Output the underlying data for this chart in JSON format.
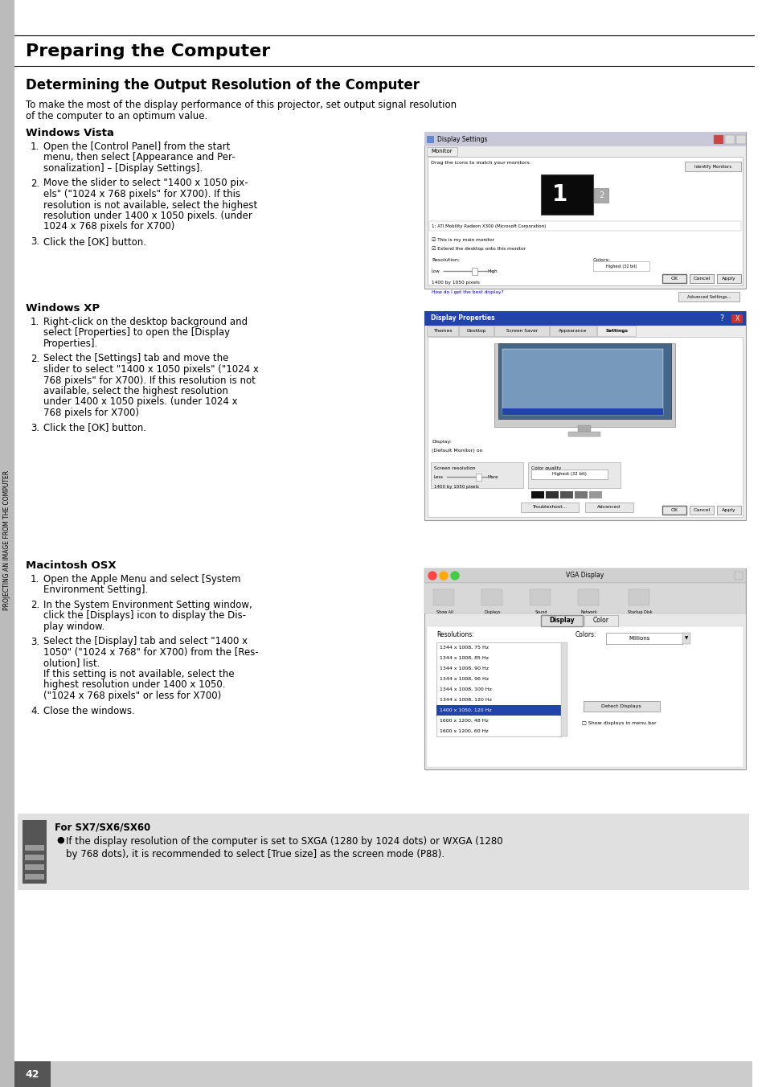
{
  "page_bg": "#ffffff",
  "sidebar_color": "#aaaaaa",
  "sidebar_text": "PROJECTING AN IMAGE FROM THE COMPUTER",
  "section_title": "Preparing the Computer",
  "subsection_title": "Determining the Output Resolution of the Computer",
  "intro_text1": "To make the most of the display performance of this projector, set output signal resolution",
  "intro_text2": "of the computer to an optimum value.",
  "windows_vista_heading": "Windows Vista",
  "windows_xp_heading": "Windows XP",
  "mac_heading": "Macintosh OSX",
  "note_bg": "#e0e0e0",
  "note_title": "For SX7/SX6/SX60",
  "note_text1": "If the display resolution of the computer is set to SXGA (1280 by 1024 dots) or WXGA (1280",
  "note_text2": "by 768 dots), it is recommended to select [True size] as the screen mode (P88).",
  "page_number": "42"
}
